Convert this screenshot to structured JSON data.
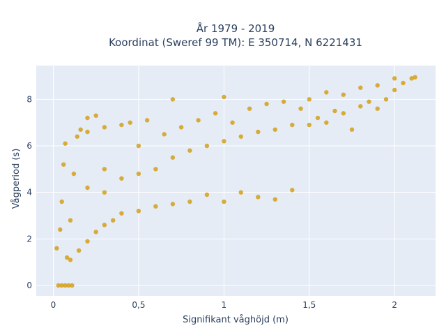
{
  "chart_data": {
    "type": "scatter",
    "title_line1": "År 1979 - 2019",
    "title_line2": "Koordinat (Sweref 99 TM): E 350714, N 6221431",
    "xlabel": "Signifikant våghöjd (m)",
    "ylabel": "Vågperiod (s)",
    "xlim": [
      -0.1,
      2.24
    ],
    "ylim": [
      -0.45,
      9.45
    ],
    "x_ticks": [
      0,
      0.5,
      1,
      1.5,
      2
    ],
    "x_tick_labels": [
      "0",
      "0,5",
      "1",
      "1,5",
      "2"
    ],
    "y_ticks": [
      0,
      2,
      4,
      6,
      8
    ],
    "y_tick_labels": [
      "0",
      "2",
      "4",
      "6",
      "8"
    ],
    "grid": true,
    "colors": {
      "plot_background": "#E5ECF6",
      "grid": "#ffffff",
      "marker": "#D4A017",
      "text": "#2a3f5f"
    },
    "points": [
      [
        0.03,
        0.0
      ],
      [
        0.05,
        0.0
      ],
      [
        0.07,
        0.0
      ],
      [
        0.09,
        0.0
      ],
      [
        0.11,
        0.0
      ],
      [
        0.02,
        1.6
      ],
      [
        0.04,
        2.4
      ],
      [
        0.05,
        3.6
      ],
      [
        0.06,
        5.2
      ],
      [
        0.07,
        6.1
      ],
      [
        0.08,
        1.2
      ],
      [
        0.1,
        2.8
      ],
      [
        0.12,
        4.8
      ],
      [
        0.14,
        6.4
      ],
      [
        0.16,
        6.7
      ],
      [
        0.1,
        1.1
      ],
      [
        0.15,
        1.5
      ],
      [
        0.2,
        1.9
      ],
      [
        0.2,
        4.2
      ],
      [
        0.2,
        6.6
      ],
      [
        0.25,
        2.3
      ],
      [
        0.3,
        2.6
      ],
      [
        0.3,
        4.0
      ],
      [
        0.3,
        5.0
      ],
      [
        0.3,
        6.8
      ],
      [
        0.35,
        2.8
      ],
      [
        0.4,
        3.1
      ],
      [
        0.4,
        4.6
      ],
      [
        0.4,
        6.9
      ],
      [
        0.45,
        7.0
      ],
      [
        0.5,
        3.2
      ],
      [
        0.5,
        4.8
      ],
      [
        0.5,
        6.0
      ],
      [
        0.55,
        7.1
      ],
      [
        0.6,
        3.4
      ],
      [
        0.6,
        5.0
      ],
      [
        0.65,
        6.5
      ],
      [
        0.7,
        3.5
      ],
      [
        0.7,
        5.5
      ],
      [
        0.7,
        8.0
      ],
      [
        0.75,
        6.8
      ],
      [
        0.8,
        3.6
      ],
      [
        0.8,
        5.8
      ],
      [
        0.85,
        7.1
      ],
      [
        0.9,
        3.9
      ],
      [
        0.9,
        6.0
      ],
      [
        0.95,
        7.4
      ],
      [
        1.0,
        3.6
      ],
      [
        1.0,
        6.2
      ],
      [
        1.0,
        8.1
      ],
      [
        1.05,
        7.0
      ],
      [
        1.1,
        4.0
      ],
      [
        1.1,
        6.4
      ],
      [
        1.15,
        7.6
      ],
      [
        1.2,
        3.8
      ],
      [
        1.2,
        6.6
      ],
      [
        1.25,
        7.8
      ],
      [
        1.3,
        3.7
      ],
      [
        1.3,
        6.7
      ],
      [
        1.35,
        7.9
      ],
      [
        1.4,
        4.1
      ],
      [
        1.4,
        6.9
      ],
      [
        1.45,
        7.6
      ],
      [
        1.5,
        6.9
      ],
      [
        1.5,
        8.0
      ],
      [
        1.55,
        7.2
      ],
      [
        1.6,
        7.0
      ],
      [
        1.6,
        8.3
      ],
      [
        1.65,
        7.5
      ],
      [
        1.7,
        7.4
      ],
      [
        1.7,
        8.2
      ],
      [
        1.75,
        6.7
      ],
      [
        1.8,
        7.7
      ],
      [
        1.8,
        8.5
      ],
      [
        1.85,
        7.9
      ],
      [
        1.9,
        7.6
      ],
      [
        1.9,
        8.6
      ],
      [
        1.95,
        8.0
      ],
      [
        2.0,
        8.4
      ],
      [
        2.0,
        8.9
      ],
      [
        2.05,
        8.7
      ],
      [
        2.1,
        8.9
      ],
      [
        2.12,
        8.95
      ],
      [
        0.2,
        7.2
      ],
      [
        0.25,
        7.3
      ]
    ]
  }
}
